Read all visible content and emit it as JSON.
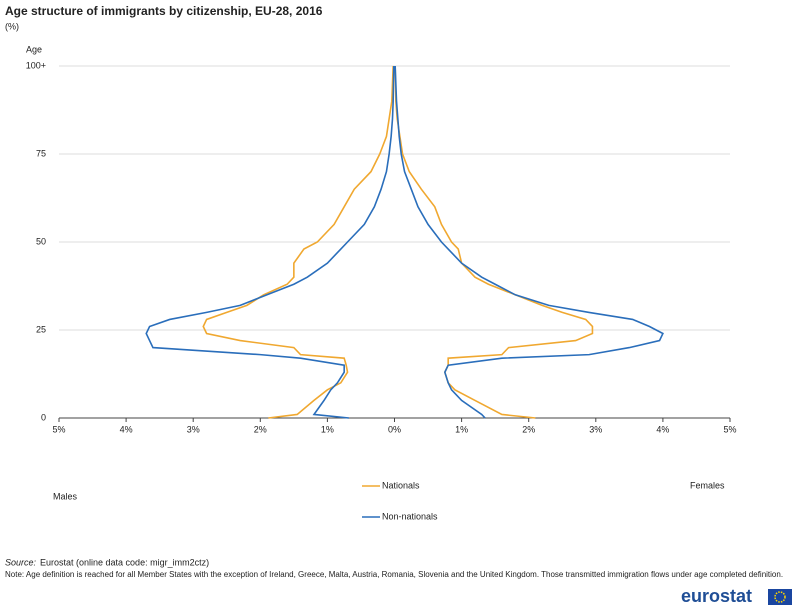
{
  "chart_data": {
    "type": "pyramid-line",
    "title": "Age structure of immigrants by citizenship, EU-28, 2016",
    "subtitle": "(%)",
    "y_label": "Age",
    "left_label": "Males",
    "right_label": "Females",
    "ages": [
      0,
      1,
      5,
      8,
      10,
      13,
      15,
      17,
      18,
      20,
      22,
      24,
      26,
      28,
      30,
      32,
      35,
      38,
      40,
      44,
      48,
      50,
      55,
      60,
      65,
      70,
      75,
      80,
      85,
      90,
      100
    ],
    "series": [
      {
        "name": "Nationals",
        "color": "#f0a830",
        "males": [
          1.88,
          1.45,
          1.2,
          1.0,
          0.8,
          0.7,
          0.72,
          0.75,
          1.4,
          1.5,
          2.3,
          2.8,
          2.85,
          2.8,
          2.5,
          2.2,
          1.95,
          1.6,
          1.5,
          1.5,
          1.35,
          1.15,
          0.9,
          0.75,
          0.6,
          0.35,
          0.22,
          0.12,
          0.08,
          0.04,
          0.02
        ],
        "females": [
          2.1,
          1.6,
          1.2,
          0.9,
          0.8,
          0.75,
          0.8,
          0.8,
          1.6,
          1.7,
          2.7,
          2.95,
          2.95,
          2.85,
          2.5,
          2.2,
          1.8,
          1.4,
          1.2,
          1.0,
          0.95,
          0.85,
          0.7,
          0.6,
          0.4,
          0.22,
          0.12,
          0.08,
          0.04,
          0.02,
          0.01
        ]
      },
      {
        "name": "Non-nationals",
        "color": "#2a6ebb",
        "males": [
          0.68,
          1.2,
          1.05,
          0.95,
          0.85,
          0.75,
          0.75,
          1.4,
          2.0,
          3.6,
          3.65,
          3.7,
          3.65,
          3.35,
          2.8,
          2.3,
          1.9,
          1.5,
          1.3,
          1.0,
          0.8,
          0.7,
          0.45,
          0.3,
          0.2,
          0.12,
          0.08,
          0.05,
          0.03,
          0.02,
          0.01
        ],
        "females": [
          1.35,
          1.3,
          1.0,
          0.85,
          0.8,
          0.75,
          0.8,
          1.6,
          2.9,
          3.5,
          3.95,
          4.0,
          3.8,
          3.55,
          2.9,
          2.3,
          1.8,
          1.5,
          1.3,
          1.0,
          0.8,
          0.7,
          0.5,
          0.35,
          0.25,
          0.15,
          0.1,
          0.07,
          0.05,
          0.03,
          0.01
        ]
      }
    ],
    "xlim": [
      -5,
      5
    ],
    "xticks": [
      {
        "value": -5,
        "label": "5%"
      },
      {
        "value": -4,
        "label": "4%"
      },
      {
        "value": -3,
        "label": "3%"
      },
      {
        "value": -2,
        "label": "2%"
      },
      {
        "value": -1,
        "label": "1%"
      },
      {
        "value": 0,
        "label": "0%"
      },
      {
        "value": 1,
        "label": "1%"
      },
      {
        "value": 2,
        "label": "2%"
      },
      {
        "value": 3,
        "label": "3%"
      },
      {
        "value": 4,
        "label": "4%"
      },
      {
        "value": 5,
        "label": "5%"
      }
    ],
    "ylim": [
      0,
      100
    ],
    "yticks": [
      0,
      25,
      50,
      75,
      {
        "value": 100,
        "label": "100+"
      }
    ],
    "grid": true
  },
  "footer": {
    "source_label": "Source:",
    "source": "Eurostat (online data code: migr_imm2ctz)",
    "note": "Note: Age definition is reached for all Member States with the exception of Ireland, Greece, Malta, Austria, Romania, Slovenia and the United Kingdom. Those transmitted immigration flows under age completed definition.",
    "logo": "eurostat"
  }
}
